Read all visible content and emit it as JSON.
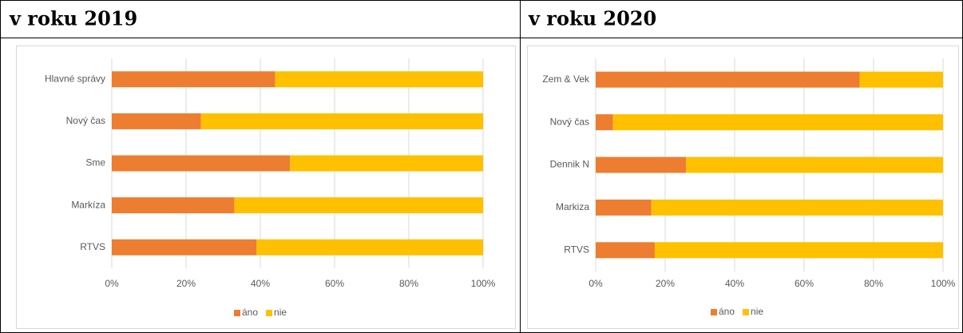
{
  "chart_data": [
    {
      "type": "stacked_bar_horizontal",
      "title": "v roku 2019",
      "categories": [
        "Hlavné správy",
        "Nový čas",
        "Sme",
        "Markíza",
        "RTVS"
      ],
      "series": [
        {
          "name": "áno",
          "color": "#ed7d31",
          "values": [
            44,
            24,
            48,
            33,
            39
          ]
        },
        {
          "name": "nie",
          "color": "#ffc000",
          "values": [
            56,
            76,
            52,
            67,
            61
          ]
        }
      ],
      "xlim": [
        0,
        100
      ],
      "xticks": [
        {
          "value": 0,
          "label": "0%"
        },
        {
          "value": 20,
          "label": "20%"
        },
        {
          "value": 40,
          "label": "40%"
        },
        {
          "value": 60,
          "label": "60%"
        },
        {
          "value": 80,
          "label": "80%"
        },
        {
          "value": 100,
          "label": "100%"
        }
      ],
      "grid": true,
      "legend": "bottom"
    },
    {
      "type": "stacked_bar_horizontal",
      "title": "v roku 2020",
      "categories": [
        "Zem & Vek",
        "Nový čas",
        "Dennik N",
        "Markiza",
        "RTVS"
      ],
      "series": [
        {
          "name": "áno",
          "color": "#ed7d31",
          "values": [
            76,
            5,
            26,
            16,
            17
          ]
        },
        {
          "name": "nie",
          "color": "#ffc000",
          "values": [
            24,
            95,
            74,
            84,
            83
          ]
        }
      ],
      "xlim": [
        0,
        100
      ],
      "xticks": [
        {
          "value": 0,
          "label": "0%"
        },
        {
          "value": 20,
          "label": "20%"
        },
        {
          "value": 40,
          "label": "40%"
        },
        {
          "value": 60,
          "label": "60%"
        },
        {
          "value": 80,
          "label": "80%"
        },
        {
          "value": 100,
          "label": "100%"
        }
      ],
      "grid": true,
      "legend": "bottom"
    }
  ]
}
